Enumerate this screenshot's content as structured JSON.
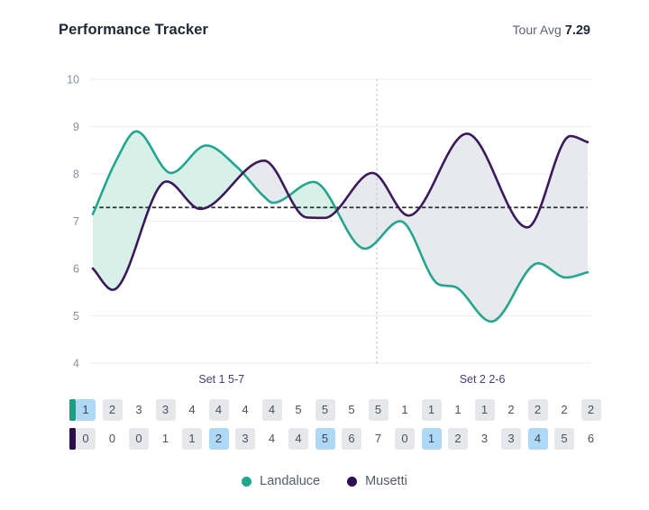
{
  "header": {
    "title": "Performance Tracker",
    "tour_avg_label": "Tour Avg",
    "tour_avg_value": "7.29"
  },
  "chart_data": {
    "type": "area",
    "title": "Performance Tracker",
    "tour_avg": 7.29,
    "ylim": [
      4,
      10
    ],
    "yticks": [
      4,
      5,
      6,
      7,
      8,
      9,
      10
    ],
    "grid": true,
    "legend_position": "bottom",
    "set_divider_f": 0.574,
    "sets": [
      {
        "label": "Set 1 5-7",
        "center_f": 0.26
      },
      {
        "label": "Set 2 2-6",
        "center_f": 0.787
      }
    ],
    "colors": {
      "avg_line": "#2b2f34",
      "divider": "#cdd1d7",
      "gridline": "#eceef2",
      "tick_text": "#868fa0",
      "set_label_text": "#4d3c72"
    },
    "series": [
      {
        "name": "Landaluce",
        "color": "#23a68c",
        "fill": "#d8f1e8",
        "points": [
          [
            0.0,
            7.15
          ],
          [
            0.048,
            8.3
          ],
          [
            0.088,
            8.9
          ],
          [
            0.158,
            8.02
          ],
          [
            0.229,
            8.6
          ],
          [
            0.291,
            8.15
          ],
          [
            0.346,
            7.52
          ],
          [
            0.364,
            7.39
          ],
          [
            0.446,
            7.83
          ],
          [
            0.55,
            6.42
          ],
          [
            0.621,
            7.0
          ],
          [
            0.7,
            5.66
          ],
          [
            0.729,
            5.62
          ],
          [
            0.805,
            4.88
          ],
          [
            0.9,
            6.11
          ],
          [
            0.956,
            5.81
          ],
          [
            1.0,
            5.92
          ]
        ]
      },
      {
        "name": "Musetti",
        "color": "#3b1a5c",
        "fill": "#e8e8ef",
        "points": [
          [
            0.0,
            6.0
          ],
          [
            0.04,
            5.55
          ],
          [
            0.149,
            7.84
          ],
          [
            0.217,
            7.26
          ],
          [
            0.346,
            8.28
          ],
          [
            0.432,
            7.08
          ],
          [
            0.468,
            7.07
          ],
          [
            0.565,
            8.02
          ],
          [
            0.638,
            7.12
          ],
          [
            0.756,
            8.85
          ],
          [
            0.878,
            6.87
          ],
          [
            0.965,
            8.8
          ],
          [
            1.0,
            8.67
          ]
        ]
      }
    ]
  },
  "score_grid": {
    "rows": [
      {
        "player": "Landaluce",
        "swatch_color": "#1b9e82",
        "cells": [
          {
            "v": "1",
            "s": "hl"
          },
          {
            "v": "2",
            "s": "alt"
          },
          {
            "v": "3",
            "s": ""
          },
          {
            "v": "3",
            "s": "alt"
          },
          {
            "v": "4",
            "s": ""
          },
          {
            "v": "4",
            "s": "alt"
          },
          {
            "v": "4",
            "s": ""
          },
          {
            "v": "4",
            "s": "alt"
          },
          {
            "v": "5",
            "s": ""
          },
          {
            "v": "5",
            "s": "alt"
          },
          {
            "v": "5",
            "s": ""
          },
          {
            "v": "5",
            "s": "alt"
          },
          {
            "v": "1",
            "s": ""
          },
          {
            "v": "1",
            "s": "alt"
          },
          {
            "v": "1",
            "s": ""
          },
          {
            "v": "1",
            "s": "alt"
          },
          {
            "v": "2",
            "s": ""
          },
          {
            "v": "2",
            "s": "alt"
          },
          {
            "v": "2",
            "s": ""
          },
          {
            "v": "2",
            "s": "alt"
          }
        ]
      },
      {
        "player": "Musetti",
        "swatch_color": "#2d0f4e",
        "cells": [
          {
            "v": "0",
            "s": "alt"
          },
          {
            "v": "0",
            "s": ""
          },
          {
            "v": "0",
            "s": "alt"
          },
          {
            "v": "1",
            "s": ""
          },
          {
            "v": "1",
            "s": "alt"
          },
          {
            "v": "2",
            "s": "hl"
          },
          {
            "v": "3",
            "s": "alt"
          },
          {
            "v": "4",
            "s": ""
          },
          {
            "v": "4",
            "s": "alt"
          },
          {
            "v": "5",
            "s": "hl"
          },
          {
            "v": "6",
            "s": "alt"
          },
          {
            "v": "7",
            "s": ""
          },
          {
            "v": "0",
            "s": "alt"
          },
          {
            "v": "1",
            "s": "hl"
          },
          {
            "v": "2",
            "s": "alt"
          },
          {
            "v": "3",
            "s": ""
          },
          {
            "v": "3",
            "s": "alt"
          },
          {
            "v": "4",
            "s": "hl"
          },
          {
            "v": "5",
            "s": "alt"
          },
          {
            "v": "6",
            "s": ""
          }
        ]
      }
    ]
  },
  "legend": {
    "items": [
      {
        "label": "Landaluce",
        "color": "#1ea78c"
      },
      {
        "label": "Musetti",
        "color": "#2d0f4e"
      }
    ]
  }
}
